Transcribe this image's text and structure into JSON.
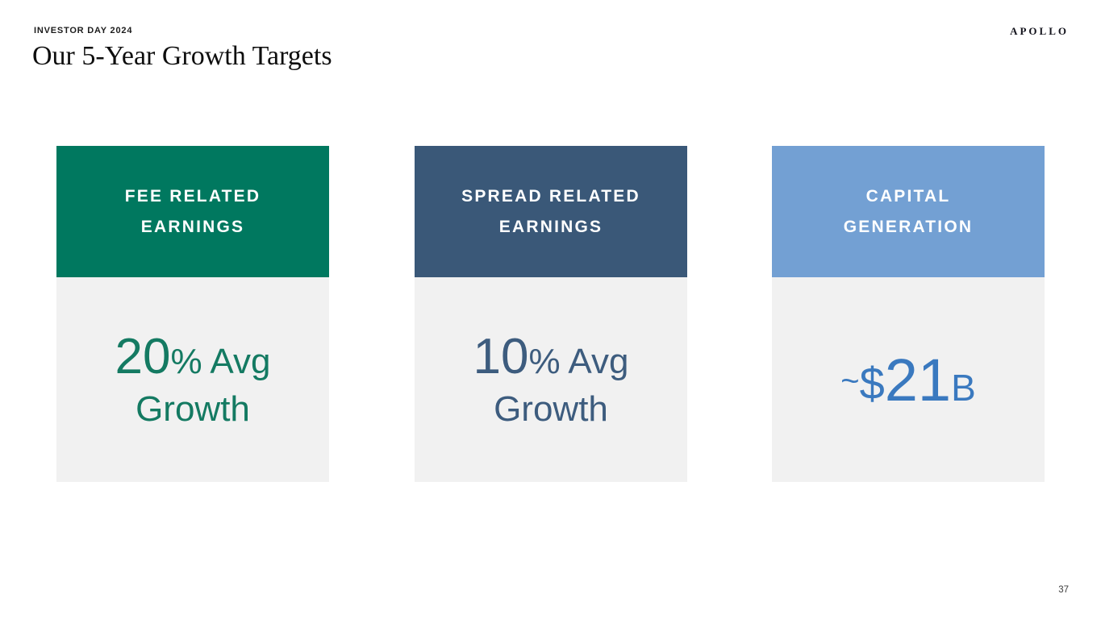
{
  "page": {
    "eyebrow": "INVESTOR DAY 2024",
    "title": "Our 5-Year Growth Targets",
    "logo": "APOLLO",
    "page_number": "37"
  },
  "colors": {
    "card1_header_bg": "#00785F",
    "card2_header_bg": "#3A5878",
    "card3_header_bg": "#73A0D3",
    "card_body_bg": "#F1F1F1",
    "card1_value_text": "#147A62",
    "card2_value_text": "#3D5C7E",
    "card3_value_text": "#3A79BF"
  },
  "cards": [
    {
      "title_line1": "FEE RELATED",
      "title_line2": "EARNINGS",
      "value_number": "20",
      "value_suffix": "% Avg",
      "value_line2": "Growth"
    },
    {
      "title_line1": "SPREAD RELATED",
      "title_line2": "EARNINGS",
      "value_number": "10",
      "value_suffix": "% Avg",
      "value_line2": "Growth"
    },
    {
      "title_line1": "CAPITAL",
      "title_line2": "GENERATION",
      "value_tilde": "~",
      "value_dollar": "$",
      "value_number": "21",
      "value_unit": "B"
    }
  ]
}
